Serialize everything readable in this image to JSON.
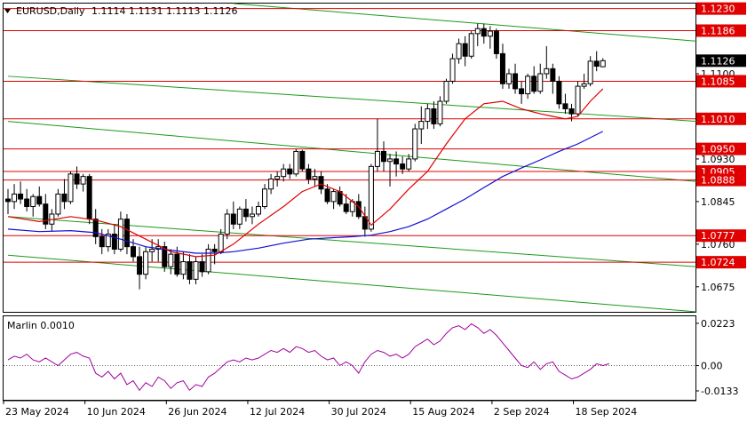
{
  "chart_data": [
    {
      "type": "candlestick",
      "symbol_header": "EURUSD,Daily",
      "ohlc_header": "1.1114 1.1131 1.1113 1.1126",
      "ylim": [
        1.0625,
        1.124
      ],
      "x_ticks": [
        "23 May 2024",
        "10 Jun 2024",
        "26 Jun 2024",
        "12 Jul 2024",
        "30 Jul 2024",
        "15 Aug 2024",
        "2 Sep 2024",
        "18 Sep 2024"
      ],
      "y_ticks": [
        "1.1100",
        "1.0930",
        "1.0845",
        "1.0760",
        "1.0675"
      ],
      "level_labels": [
        {
          "price": 1.123,
          "label": "1.1230"
        },
        {
          "price": 1.1186,
          "label": "1.1186"
        },
        {
          "price": 1.1085,
          "label": "1.1085"
        },
        {
          "price": 1.101,
          "label": "1.1010"
        },
        {
          "price": 1.095,
          "label": "1.0950"
        },
        {
          "price": 1.0905,
          "label": "1.0905"
        },
        {
          "price": 1.0888,
          "label": "1.0888"
        },
        {
          "price": 1.0777,
          "label": "1.0777"
        },
        {
          "price": 1.0724,
          "label": "1.0724"
        }
      ],
      "current_price_label": "1.1126",
      "colors": {
        "level": "#e00000",
        "channel": "#1a9a1a",
        "ma_fast": "#e00000",
        "ma_slow": "#1010d0",
        "candle": "#000000",
        "current_label_bg": "#000000",
        "current_label_fg": "#ffffff"
      },
      "candles": [
        [
          1.085,
          1.087,
          1.082,
          1.0845
        ],
        [
          1.0845,
          1.088,
          1.083,
          1.086
        ],
        [
          1.086,
          1.0885,
          1.084,
          1.085
        ],
        [
          1.085,
          1.087,
          1.0825,
          1.0835
        ],
        [
          1.0835,
          1.086,
          1.0815,
          1.0855
        ],
        [
          1.0855,
          1.0875,
          1.0835,
          1.084
        ],
        [
          1.084,
          1.086,
          1.079,
          1.08
        ],
        [
          1.08,
          1.083,
          1.0785,
          1.082
        ],
        [
          1.082,
          1.087,
          1.0815,
          1.086
        ],
        [
          1.086,
          1.089,
          1.083,
          1.0845
        ],
        [
          1.0845,
          1.0905,
          1.084,
          1.09
        ],
        [
          1.09,
          1.0915,
          1.087,
          1.088
        ],
        [
          1.088,
          1.09,
          1.0865,
          1.0895
        ],
        [
          1.0895,
          1.09,
          1.08,
          1.081
        ],
        [
          1.081,
          1.083,
          1.076,
          1.0775
        ],
        [
          1.0775,
          1.079,
          1.074,
          1.0755
        ],
        [
          1.0755,
          1.079,
          1.0745,
          1.078
        ],
        [
          1.078,
          1.08,
          1.074,
          1.075
        ],
        [
          1.075,
          1.0825,
          1.0745,
          1.081
        ],
        [
          1.081,
          1.082,
          1.074,
          1.0755
        ],
        [
          1.0755,
          1.077,
          1.0725,
          1.0735
        ],
        [
          1.0735,
          1.0755,
          1.067,
          1.07
        ],
        [
          1.07,
          1.0755,
          1.069,
          1.0745
        ],
        [
          1.0745,
          1.077,
          1.0725,
          1.075
        ],
        [
          1.075,
          1.077,
          1.0725,
          1.0755
        ],
        [
          1.0755,
          1.0765,
          1.0705,
          1.0715
        ],
        [
          1.0715,
          1.075,
          1.07,
          1.074
        ],
        [
          1.074,
          1.0755,
          1.0695,
          1.07
        ],
        [
          1.07,
          1.0745,
          1.069,
          1.0725
        ],
        [
          1.0725,
          1.074,
          1.068,
          1.069
        ],
        [
          1.069,
          1.0735,
          1.068,
          1.0725
        ],
        [
          1.0725,
          1.074,
          1.0695,
          1.0705
        ],
        [
          1.0705,
          1.076,
          1.07,
          1.075
        ],
        [
          1.075,
          1.076,
          1.072,
          1.0745
        ],
        [
          1.0745,
          1.079,
          1.074,
          1.078
        ],
        [
          1.078,
          1.083,
          1.077,
          1.082
        ],
        [
          1.082,
          1.0845,
          1.079,
          1.08
        ],
        [
          1.08,
          1.0835,
          1.079,
          1.083
        ],
        [
          1.083,
          1.085,
          1.0805,
          1.0815
        ],
        [
          1.0815,
          1.0835,
          1.08,
          1.082
        ],
        [
          1.082,
          1.0845,
          1.0815,
          1.0835
        ],
        [
          1.0835,
          1.088,
          1.083,
          1.087
        ],
        [
          1.087,
          1.09,
          1.086,
          1.089
        ],
        [
          1.089,
          1.0905,
          1.0875,
          1.0895
        ],
        [
          1.0895,
          1.092,
          1.0885,
          1.091
        ],
        [
          1.091,
          1.092,
          1.089,
          1.09
        ],
        [
          1.09,
          1.095,
          1.0895,
          1.0945
        ],
        [
          1.0945,
          1.0948,
          1.0905,
          1.091
        ],
        [
          1.091,
          1.092,
          1.088,
          1.089
        ],
        [
          1.089,
          1.091,
          1.0875,
          1.0895
        ],
        [
          1.0895,
          1.0905,
          1.086,
          1.087
        ],
        [
          1.087,
          1.088,
          1.084,
          1.0845
        ],
        [
          1.0845,
          1.087,
          1.083,
          1.0865
        ],
        [
          1.0865,
          1.0875,
          1.0835,
          1.084
        ],
        [
          1.084,
          1.086,
          1.082,
          1.0825
        ],
        [
          1.0825,
          1.085,
          1.0815,
          1.0845
        ],
        [
          1.0845,
          1.086,
          1.081,
          1.0815
        ],
        [
          1.0815,
          1.0835,
          1.0775,
          1.079
        ],
        [
          1.079,
          1.092,
          1.0785,
          1.0915
        ],
        [
          1.0915,
          1.101,
          1.0905,
          1.0945
        ],
        [
          1.0945,
          1.0965,
          1.0905,
          1.0925
        ],
        [
          1.0925,
          1.094,
          1.0875,
          1.093
        ],
        [
          1.093,
          1.0945,
          1.0895,
          1.092
        ],
        [
          1.092,
          1.0935,
          1.09,
          1.091
        ],
        [
          1.091,
          1.094,
          1.0905,
          1.093
        ],
        [
          1.093,
          1.1,
          1.0925,
          1.099
        ],
        [
          1.099,
          1.1035,
          1.096,
          1.1005
        ],
        [
          1.1005,
          1.104,
          1.099,
          1.103
        ],
        [
          1.103,
          1.1045,
          1.099,
          1.1
        ],
        [
          1.1,
          1.1055,
          1.0995,
          1.1045
        ],
        [
          1.1045,
          1.109,
          1.104,
          1.1085
        ],
        [
          1.1085,
          1.114,
          1.108,
          1.113
        ],
        [
          1.113,
          1.117,
          1.112,
          1.116
        ],
        [
          1.116,
          1.1175,
          1.1115,
          1.1135
        ],
        [
          1.1135,
          1.1185,
          1.113,
          1.118
        ],
        [
          1.118,
          1.12,
          1.1155,
          1.119
        ],
        [
          1.119,
          1.12,
          1.116,
          1.1175
        ],
        [
          1.1175,
          1.1195,
          1.115,
          1.1185
        ],
        [
          1.1185,
          1.119,
          1.113,
          1.114
        ],
        [
          1.114,
          1.116,
          1.107,
          1.108
        ],
        [
          1.108,
          1.111,
          1.107,
          1.11
        ],
        [
          1.11,
          1.112,
          1.106,
          1.107
        ],
        [
          1.107,
          1.1085,
          1.104,
          1.106
        ],
        [
          1.106,
          1.11,
          1.105,
          1.1095
        ],
        [
          1.1095,
          1.1115,
          1.106,
          1.1065
        ],
        [
          1.1065,
          1.112,
          1.106,
          1.11
        ],
        [
          1.11,
          1.1155,
          1.109,
          1.111
        ],
        [
          1.111,
          1.112,
          1.106,
          1.1085
        ],
        [
          1.1085,
          1.1095,
          1.103,
          1.104
        ],
        [
          1.104,
          1.106,
          1.102,
          1.103
        ],
        [
          1.103,
          1.104,
          1.1005,
          1.102
        ],
        [
          1.102,
          1.1085,
          1.1015,
          1.1075
        ],
        [
          1.1075,
          1.11,
          1.107,
          1.108
        ],
        [
          1.108,
          1.1135,
          1.1075,
          1.1125
        ],
        [
          1.1125,
          1.1145,
          1.1105,
          1.1115
        ],
        [
          1.1114,
          1.1131,
          1.1113,
          1.1126
        ]
      ],
      "ma_fast": [
        [
          0,
          1.0815
        ],
        [
          5,
          1.0805
        ],
        [
          10,
          1.0815
        ],
        [
          14,
          1.0808
        ],
        [
          18,
          1.0795
        ],
        [
          22,
          1.077
        ],
        [
          26,
          1.0745
        ],
        [
          30,
          1.0735
        ],
        [
          33,
          1.0738
        ],
        [
          36,
          1.076
        ],
        [
          40,
          1.08
        ],
        [
          44,
          1.0835
        ],
        [
          47,
          1.0865
        ],
        [
          50,
          1.088
        ],
        [
          53,
          1.0865
        ],
        [
          56,
          1.0835
        ],
        [
          58,
          1.0798
        ],
        [
          61,
          1.083
        ],
        [
          64,
          1.087
        ],
        [
          67,
          1.0905
        ],
        [
          70,
          1.096
        ],
        [
          73,
          1.101
        ],
        [
          76,
          1.104
        ],
        [
          79,
          1.1045
        ],
        [
          82,
          1.103
        ],
        [
          85,
          1.102
        ],
        [
          87,
          1.1015
        ],
        [
          89,
          1.101
        ],
        [
          91,
          1.1015
        ],
        [
          93,
          1.1045
        ],
        [
          95,
          1.107
        ]
      ],
      "ma_slow": [
        [
          0,
          1.079
        ],
        [
          5,
          1.0785
        ],
        [
          10,
          1.0787
        ],
        [
          14,
          1.0783
        ],
        [
          18,
          1.077
        ],
        [
          22,
          1.0755
        ],
        [
          26,
          1.0748
        ],
        [
          30,
          1.0742
        ],
        [
          33,
          1.0742
        ],
        [
          36,
          1.0745
        ],
        [
          40,
          1.0752
        ],
        [
          44,
          1.0762
        ],
        [
          48,
          1.077
        ],
        [
          52,
          1.0773
        ],
        [
          55,
          1.0775
        ],
        [
          58,
          1.0778
        ],
        [
          61,
          1.0785
        ],
        [
          64,
          1.0795
        ],
        [
          67,
          1.081
        ],
        [
          70,
          1.083
        ],
        [
          73,
          1.085
        ],
        [
          76,
          1.0873
        ],
        [
          79,
          1.0895
        ],
        [
          82,
          1.0912
        ],
        [
          85,
          1.0928
        ],
        [
          88,
          1.0945
        ],
        [
          91,
          1.096
        ],
        [
          95,
          1.0985
        ]
      ],
      "channel_lines": [
        [
          [
            0,
            1.1095
          ],
          [
            110,
            1.1005
          ]
        ],
        [
          [
            0,
            1.1005
          ],
          [
            110,
            1.0885
          ]
        ],
        [
          [
            0,
            1.0815
          ],
          [
            110,
            1.0715
          ]
        ],
        [
          [
            0,
            1.0738
          ],
          [
            110,
            1.0625
          ]
        ],
        [
          [
            36,
            1.124
          ],
          [
            110,
            1.1165
          ]
        ]
      ]
    },
    {
      "type": "line",
      "title": "Marlin 0.0010",
      "y_ticks": [
        "0.0223",
        "0.00",
        "-0.0133"
      ],
      "ylim": [
        -0.018,
        0.026
      ],
      "zero_line": true,
      "color": "#a000a0",
      "values": [
        0.003,
        0.005,
        0.004,
        0.006,
        0.003,
        0.002,
        0.004,
        0.002,
        0.0,
        0.003,
        0.006,
        0.007,
        0.005,
        0.004,
        -0.004,
        -0.006,
        -0.003,
        -0.007,
        -0.004,
        -0.01,
        -0.008,
        -0.013,
        -0.009,
        -0.011,
        -0.006,
        -0.008,
        -0.012,
        -0.009,
        -0.008,
        -0.013,
        -0.01,
        -0.011,
        -0.006,
        -0.004,
        -0.001,
        0.002,
        0.003,
        0.002,
        0.004,
        0.003,
        0.004,
        0.006,
        0.008,
        0.007,
        0.009,
        0.007,
        0.01,
        0.009,
        0.007,
        0.008,
        0.005,
        0.003,
        0.004,
        0.0,
        0.002,
        0.0,
        -0.004,
        0.002,
        0.006,
        0.008,
        0.007,
        0.005,
        0.006,
        0.004,
        0.006,
        0.01,
        0.012,
        0.014,
        0.011,
        0.013,
        0.017,
        0.02,
        0.021,
        0.019,
        0.022,
        0.02,
        0.017,
        0.019,
        0.016,
        0.012,
        0.008,
        0.004,
        0.0,
        -0.001,
        0.002,
        -0.002,
        0.001,
        0.002,
        -0.003,
        -0.005,
        -0.007,
        -0.006,
        -0.004,
        -0.002,
        0.001,
        0.0,
        0.001
      ]
    }
  ]
}
